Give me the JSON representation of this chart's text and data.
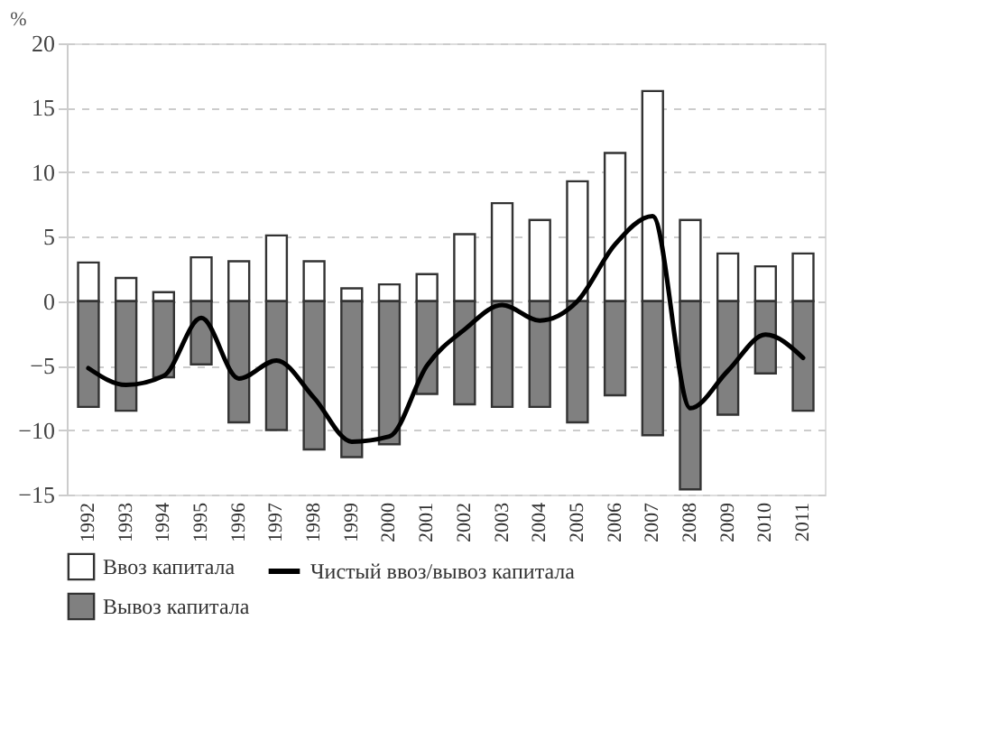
{
  "chart_data": {
    "type": "bar",
    "ylabel": "%",
    "stacked": true,
    "categories": [
      "1992",
      "1993",
      "1994",
      "1995",
      "1996",
      "1997",
      "1998",
      "1999",
      "2000",
      "2001",
      "2002",
      "2003",
      "2004",
      "2005",
      "2006",
      "2007",
      "2008",
      "2009",
      "2010",
      "2011"
    ],
    "series": [
      {
        "name": "Ввоз капитала",
        "color": "#ffffff",
        "values": [
          3.0,
          1.8,
          0.7,
          3.4,
          3.1,
          5.1,
          3.1,
          1.0,
          1.3,
          2.1,
          5.2,
          7.6,
          6.3,
          9.3,
          11.5,
          16.3,
          6.3,
          3.7,
          2.7,
          3.7
        ]
      },
      {
        "name": "Вывоз капитала",
        "color": "#808080",
        "values": [
          -8.2,
          -8.5,
          -5.9,
          -4.9,
          -9.4,
          -10.0,
          -11.5,
          -12.1,
          -11.1,
          -7.2,
          -8.0,
          -8.2,
          -8.2,
          -9.4,
          -7.3,
          -10.4,
          -14.6,
          -8.8,
          -5.6,
          -8.5
        ]
      },
      {
        "name": "Чистый ввоз/вывоз капитала",
        "type": "line",
        "color": "#000000",
        "values": [
          -5.2,
          -6.5,
          -5.8,
          -1.3,
          -6.0,
          -4.6,
          -7.5,
          -10.9,
          -10.5,
          -5.0,
          -2.2,
          -0.3,
          -1.5,
          0.0,
          4.4,
          6.6,
          -8.3,
          -5.4,
          -2.6,
          -4.4
        ]
      }
    ],
    "ylim": [
      -15,
      20
    ],
    "yticks": [
      -15,
      -10,
      -5,
      0,
      5,
      10,
      15,
      20
    ],
    "grid": "y",
    "legend": "bottom",
    "line_style": "solid"
  }
}
